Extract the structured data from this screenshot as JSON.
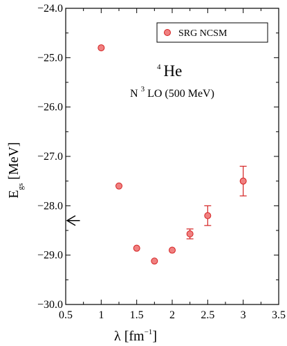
{
  "chart_data": {
    "type": "scatter",
    "xlabel": {
      "main": "λ [fm",
      "sup": "−1",
      "tail": "]"
    },
    "ylabel": {
      "main": "E",
      "sub": "gs",
      "tail": " [MeV]"
    },
    "xlim": [
      0.5,
      3.5
    ],
    "ylim": [
      -30.0,
      -24.0
    ],
    "x_ticks": [
      0.5,
      1,
      1.5,
      2,
      2.5,
      3,
      3.5
    ],
    "x_tick_labels": [
      "0.5",
      "1",
      "1.5",
      "2",
      "2.5",
      "3",
      "3.5"
    ],
    "y_ticks": [
      -24.0,
      -25.0,
      -26.0,
      -27.0,
      -28.0,
      -29.0,
      -30.0
    ],
    "y_tick_labels": [
      "−24.0",
      "−25.0",
      "−26.0",
      "−27.0",
      "−28.0",
      "−29.0",
      "−30.0"
    ],
    "grid": false,
    "legend_position": "top-right",
    "marker_color": "#f08080",
    "marker_edge_color": "#d42020",
    "series": [
      {
        "name": "SRG NCSM",
        "points": [
          {
            "x": 1.0,
            "y": -24.8,
            "err": 0
          },
          {
            "x": 1.25,
            "y": -27.6,
            "err": 0
          },
          {
            "x": 1.5,
            "y": -28.86,
            "err": 0
          },
          {
            "x": 1.75,
            "y": -29.12,
            "err": 0
          },
          {
            "x": 2.0,
            "y": -28.9,
            "err": 0
          },
          {
            "x": 2.25,
            "y": -28.57,
            "err": 0.1
          },
          {
            "x": 2.5,
            "y": -28.2,
            "err": 0.2
          },
          {
            "x": 3.0,
            "y": -27.5,
            "err": 0.3
          }
        ]
      }
    ],
    "arrow": {
      "from_x": 0.5,
      "to_x": 0.7,
      "y": -28.3
    },
    "annotations": {
      "nucleus_sup": "4",
      "nucleus": "He",
      "interaction_prefix": "N",
      "interaction_sup": "3",
      "interaction_rest": "LO (500 MeV)"
    }
  }
}
